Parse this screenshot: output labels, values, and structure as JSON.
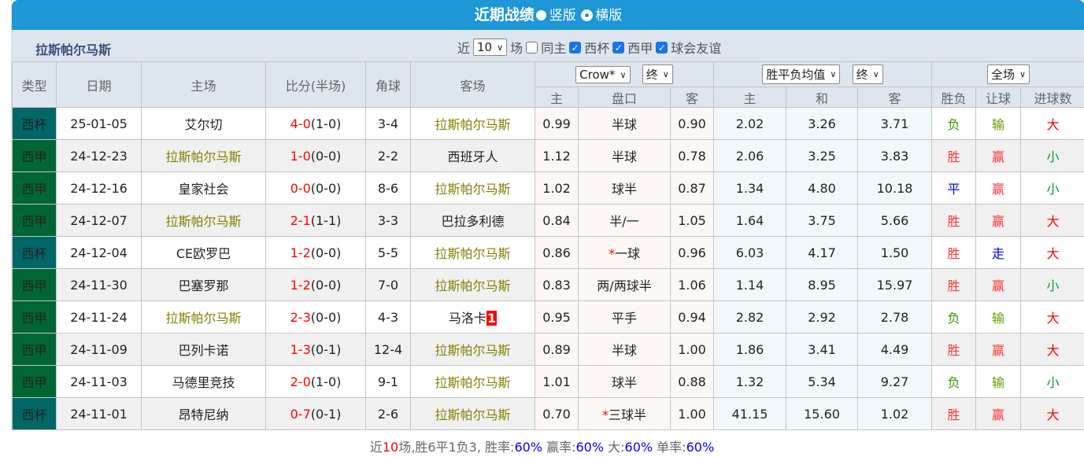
{
  "title": "近期战绩",
  "layout_options": [
    {
      "label": "竖版",
      "selected": false
    },
    {
      "label": "横版",
      "selected": true
    }
  ],
  "team": "拉斯帕尔马斯",
  "filters": {
    "prefix": "近",
    "count": "10",
    "suffix": "场",
    "checkboxes": [
      {
        "label": "同主",
        "checked": false
      },
      {
        "label": "西杯",
        "checked": true
      },
      {
        "label": "西甲",
        "checked": true
      },
      {
        "label": "球会友谊",
        "checked": true
      }
    ]
  },
  "headers": {
    "type": "类型",
    "date": "日期",
    "home": "主场",
    "score": "比分(半场)",
    "corner": "角球",
    "away": "客场",
    "company": "Crow*",
    "odds_stage": "终",
    "avg": "胜平负均值",
    "avg_stage": "终",
    "period": "全场",
    "sub": [
      "主",
      "盘口",
      "客",
      "主",
      "和",
      "客",
      "胜负",
      "让球",
      "进球数"
    ]
  },
  "colors": {
    "西杯": "#006666",
    "西甲": "#006633",
    "胜": "#ff3333",
    "负": "#339900",
    "平": "#0000ff",
    "赢": "#ff3333",
    "输": "#669900",
    "走": "#0000ff",
    "大": "#ff0000",
    "小": "#009933"
  },
  "rows": [
    {
      "type": "西杯",
      "date": "25-01-05",
      "home": "艾尔切",
      "score": "4-0",
      "half": "(1-0)",
      "corner": "3-4",
      "away": "拉斯帕尔马斯",
      "away_badge": "",
      "h": "0.99",
      "hcp_star": "",
      "hcp": "半球",
      "a": "0.90",
      "w": "2.02",
      "d": "3.26",
      "l": "3.71",
      "res": "负",
      "ah": "输",
      "ou": "大"
    },
    {
      "type": "西甲",
      "date": "24-12-23",
      "home": "拉斯帕尔马斯",
      "score": "1-0",
      "half": "(0-0)",
      "corner": "2-2",
      "away": "西班牙人",
      "away_badge": "",
      "h": "1.12",
      "hcp_star": "",
      "hcp": "半球",
      "a": "0.78",
      "w": "2.06",
      "d": "3.25",
      "l": "3.83",
      "res": "胜",
      "ah": "赢",
      "ou": "小"
    },
    {
      "type": "西甲",
      "date": "24-12-16",
      "home": "皇家社会",
      "score": "0-0",
      "half": "(0-0)",
      "corner": "8-6",
      "away": "拉斯帕尔马斯",
      "away_badge": "",
      "h": "1.02",
      "hcp_star": "",
      "hcp": "球半",
      "a": "0.87",
      "w": "1.34",
      "d": "4.80",
      "l": "10.18",
      "res": "平",
      "ah": "赢",
      "ou": "小"
    },
    {
      "type": "西甲",
      "date": "24-12-07",
      "home": "拉斯帕尔马斯",
      "score": "2-1",
      "half": "(1-1)",
      "corner": "3-3",
      "away": "巴拉多利德",
      "away_badge": "",
      "h": "0.84",
      "hcp_star": "",
      "hcp": "半/一",
      "a": "1.05",
      "w": "1.64",
      "d": "3.75",
      "l": "5.66",
      "res": "胜",
      "ah": "赢",
      "ou": "大"
    },
    {
      "type": "西杯",
      "date": "24-12-04",
      "home": "CE欧罗巴",
      "score": "1-2",
      "half": "(0-0)",
      "corner": "5-5",
      "away": "拉斯帕尔马斯",
      "away_badge": "",
      "h": "0.86",
      "hcp_star": "*",
      "hcp": "一球",
      "a": "0.96",
      "w": "6.03",
      "d": "4.17",
      "l": "1.50",
      "res": "胜",
      "ah": "走",
      "ou": "大"
    },
    {
      "type": "西甲",
      "date": "24-11-30",
      "home": "巴塞罗那",
      "score": "1-2",
      "half": "(0-0)",
      "corner": "7-0",
      "away": "拉斯帕尔马斯",
      "away_badge": "",
      "h": "0.83",
      "hcp_star": "",
      "hcp": "两/两球半",
      "a": "1.06",
      "w": "1.14",
      "d": "8.95",
      "l": "15.97",
      "res": "胜",
      "ah": "赢",
      "ou": "小"
    },
    {
      "type": "西甲",
      "date": "24-11-24",
      "home": "拉斯帕尔马斯",
      "score": "2-3",
      "half": "(0-0)",
      "corner": "4-3",
      "away": "马洛卡",
      "away_badge": "1",
      "h": "0.95",
      "hcp_star": "",
      "hcp": "平手",
      "a": "0.94",
      "w": "2.82",
      "d": "2.92",
      "l": "2.78",
      "res": "负",
      "ah": "输",
      "ou": "大"
    },
    {
      "type": "西甲",
      "date": "24-11-09",
      "home": "巴列卡诺",
      "score": "1-3",
      "half": "(0-1)",
      "corner": "12-4",
      "away": "拉斯帕尔马斯",
      "away_badge": "",
      "h": "0.89",
      "hcp_star": "",
      "hcp": "半球",
      "a": "1.00",
      "w": "1.86",
      "d": "3.41",
      "l": "4.49",
      "res": "胜",
      "ah": "赢",
      "ou": "大"
    },
    {
      "type": "西甲",
      "date": "24-11-03",
      "home": "马德里竞技",
      "score": "2-0",
      "half": "(1-0)",
      "corner": "9-1",
      "away": "拉斯帕尔马斯",
      "away_badge": "",
      "h": "1.01",
      "hcp_star": "",
      "hcp": "球半",
      "a": "0.88",
      "w": "1.32",
      "d": "5.34",
      "l": "9.27",
      "res": "负",
      "ah": "输",
      "ou": "小"
    },
    {
      "type": "西杯",
      "date": "24-11-01",
      "home": "昂特尼纳",
      "score": "0-7",
      "half": "(0-1)",
      "corner": "2-6",
      "away": "拉斯帕尔马斯",
      "away_badge": "",
      "h": "0.70",
      "hcp_star": "*",
      "hcp": "三球半",
      "a": "1.00",
      "w": "41.15",
      "d": "15.60",
      "l": "1.02",
      "res": "胜",
      "ah": "赢",
      "ou": "大"
    }
  ],
  "summary": {
    "p1": "近",
    "games": "10",
    "p2": "场,胜6平1负3, 胜率:",
    "win_rate": "60%",
    "p3": " 赢率:",
    "ah_rate": "60%",
    "p4": " 大:",
    "over_rate": "60%",
    "p5": " 单率:",
    "odd_rate": "60%"
  }
}
